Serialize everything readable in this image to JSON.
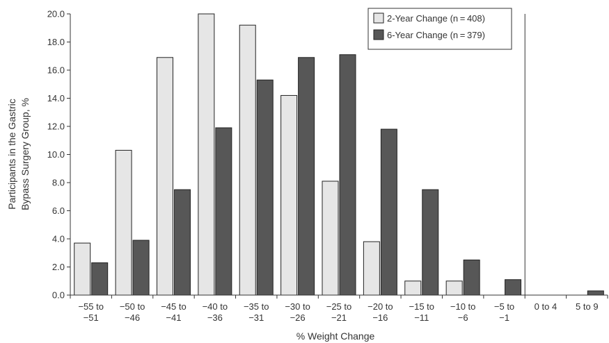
{
  "chart_data": {
    "type": "bar",
    "xlabel": "% Weight Change",
    "ylabel_lines": [
      "Participants in the Gastric",
      "Bypass Surgery Group, %"
    ],
    "ylim": [
      0,
      20
    ],
    "yticks": [
      "0.0",
      "2.0",
      "4.0",
      "6.0",
      "8.0",
      "10.0",
      "12.0",
      "14.0",
      "16.0",
      "18.0",
      "20.0"
    ],
    "categories": [
      [
        "−55 to",
        "−51"
      ],
      [
        "−50 to",
        "−46"
      ],
      [
        "−45 to",
        "−41"
      ],
      [
        "−40 to",
        "−36"
      ],
      [
        "−35 to",
        "−31"
      ],
      [
        "−30 to",
        "−26"
      ],
      [
        "−25 to",
        "−21"
      ],
      [
        "−20 to",
        "−16"
      ],
      [
        "−15 to",
        "−11"
      ],
      [
        "−10 to",
        "−6"
      ],
      [
        "−5 to",
        "−1"
      ],
      [
        "0 to 4"
      ],
      [
        "5 to 9"
      ]
    ],
    "series": [
      {
        "name": "2-Year Change (n = 408)",
        "color": "#e6e6e6",
        "values": [
          3.7,
          10.3,
          16.9,
          20.0,
          19.2,
          14.2,
          8.1,
          3.8,
          1.0,
          1.0,
          0,
          0,
          0
        ]
      },
      {
        "name": "6-Year Change (n = 379)",
        "color": "#575757",
        "values": [
          2.3,
          3.9,
          7.5,
          11.9,
          15.3,
          16.9,
          17.1,
          11.8,
          7.5,
          2.5,
          1.1,
          0,
          0.3
        ]
      }
    ],
    "legend_position": "top-right",
    "grid": false
  }
}
